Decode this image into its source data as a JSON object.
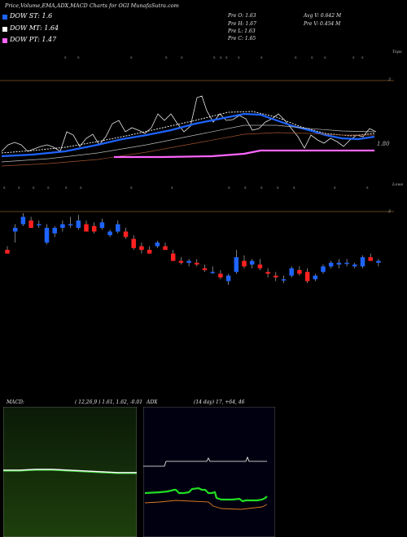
{
  "title": "Price,Volume,EMA,ADX,MACD Charts for OGI MunafaSutra.com",
  "legend": [
    {
      "label": "DOW ST: 1.6",
      "color": "#1e64ff"
    },
    {
      "label": "DOW MT: 1.64",
      "color": "#ffffff"
    },
    {
      "label": "DOW PT: 1.47",
      "color": "#ff66ff"
    }
  ],
  "stats": {
    "pre_o": "Pre  O: 1.63",
    "pre_h": "Pre  H: 1.67",
    "pre_l": "Pre  L: 1.63",
    "pre_c": "Pre  C: 1.65",
    "avg_v": "Avg V: 0.642  M",
    "pre_v": "Pre  V: 0.454  M"
  },
  "axis": {
    "tops_label": "Tops",
    "lows_label": "Lows",
    "upper_level": "2",
    "price_level": "1.80",
    "lower_level": "2"
  },
  "macd": {
    "label": "MACD:",
    "params": "( 12,26,9 ) 1.61,  1.62,  -0.01"
  },
  "adx": {
    "label": "ADX",
    "params": "(14  day) 17,  +64,  46"
  },
  "colors": {
    "up": "#1e64ff",
    "down": "#ff2020",
    "ema_short": "#1e64ff",
    "ema_mid": "#ffffff",
    "ema_long": "#ff66ff",
    "band": "#a0522d"
  },
  "chart_data": {
    "type": "candlestick",
    "candles": [
      {
        "o": 1.72,
        "h": 1.74,
        "l": 1.7,
        "c": 1.7
      },
      {
        "o": 1.82,
        "h": 1.86,
        "l": 1.76,
        "c": 1.84
      },
      {
        "o": 1.86,
        "h": 1.92,
        "l": 1.85,
        "c": 1.9
      },
      {
        "o": 1.88,
        "h": 1.9,
        "l": 1.84,
        "c": 1.84
      },
      {
        "o": 1.86,
        "h": 1.88,
        "l": 1.84,
        "c": 1.86
      },
      {
        "o": 1.76,
        "h": 1.86,
        "l": 1.75,
        "c": 1.84
      },
      {
        "o": 1.81,
        "h": 1.85,
        "l": 1.79,
        "c": 1.84
      },
      {
        "o": 1.84,
        "h": 1.88,
        "l": 1.82,
        "c": 1.86
      },
      {
        "o": 1.86,
        "h": 1.9,
        "l": 1.84,
        "c": 1.86
      },
      {
        "o": 1.84,
        "h": 1.91,
        "l": 1.83,
        "c": 1.88
      },
      {
        "o": 1.86,
        "h": 1.88,
        "l": 1.82,
        "c": 1.82
      },
      {
        "o": 1.85,
        "h": 1.87,
        "l": 1.81,
        "c": 1.82
      },
      {
        "o": 1.84,
        "h": 1.89,
        "l": 1.83,
        "c": 1.87
      },
      {
        "o": 1.8,
        "h": 1.83,
        "l": 1.79,
        "c": 1.82
      },
      {
        "o": 1.82,
        "h": 1.88,
        "l": 1.81,
        "c": 1.86
      },
      {
        "o": 1.82,
        "h": 1.84,
        "l": 1.78,
        "c": 1.79
      },
      {
        "o": 1.78,
        "h": 1.8,
        "l": 1.72,
        "c": 1.73
      },
      {
        "o": 1.74,
        "h": 1.76,
        "l": 1.7,
        "c": 1.72
      },
      {
        "o": 1.72,
        "h": 1.74,
        "l": 1.7,
        "c": 1.7
      },
      {
        "o": 1.74,
        "h": 1.77,
        "l": 1.73,
        "c": 1.76
      },
      {
        "o": 1.74,
        "h": 1.76,
        "l": 1.72,
        "c": 1.72
      },
      {
        "o": 1.7,
        "h": 1.72,
        "l": 1.66,
        "c": 1.66
      },
      {
        "o": 1.66,
        "h": 1.68,
        "l": 1.64,
        "c": 1.65
      },
      {
        "o": 1.65,
        "h": 1.67,
        "l": 1.63,
        "c": 1.66
      },
      {
        "o": 1.65,
        "h": 1.67,
        "l": 1.63,
        "c": 1.64
      },
      {
        "o": 1.62,
        "h": 1.64,
        "l": 1.6,
        "c": 1.61
      },
      {
        "o": 1.6,
        "h": 1.63,
        "l": 1.59,
        "c": 1.6
      },
      {
        "o": 1.59,
        "h": 1.61,
        "l": 1.56,
        "c": 1.57
      },
      {
        "o": 1.55,
        "h": 1.59,
        "l": 1.53,
        "c": 1.58
      },
      {
        "o": 1.6,
        "h": 1.72,
        "l": 1.59,
        "c": 1.68
      },
      {
        "o": 1.66,
        "h": 1.69,
        "l": 1.62,
        "c": 1.63
      },
      {
        "o": 1.64,
        "h": 1.67,
        "l": 1.62,
        "c": 1.66
      },
      {
        "o": 1.64,
        "h": 1.67,
        "l": 1.61,
        "c": 1.62
      },
      {
        "o": 1.6,
        "h": 1.62,
        "l": 1.57,
        "c": 1.59
      },
      {
        "o": 1.58,
        "h": 1.6,
        "l": 1.55,
        "c": 1.57
      },
      {
        "o": 1.56,
        "h": 1.58,
        "l": 1.54,
        "c": 1.56
      },
      {
        "o": 1.58,
        "h": 1.63,
        "l": 1.57,
        "c": 1.62
      },
      {
        "o": 1.61,
        "h": 1.63,
        "l": 1.58,
        "c": 1.59
      },
      {
        "o": 1.6,
        "h": 1.62,
        "l": 1.54,
        "c": 1.55
      },
      {
        "o": 1.56,
        "h": 1.59,
        "l": 1.55,
        "c": 1.58
      },
      {
        "o": 1.6,
        "h": 1.64,
        "l": 1.59,
        "c": 1.63
      },
      {
        "o": 1.63,
        "h": 1.66,
        "l": 1.62,
        "c": 1.65
      },
      {
        "o": 1.64,
        "h": 1.67,
        "l": 1.62,
        "c": 1.65
      },
      {
        "o": 1.65,
        "h": 1.67,
        "l": 1.63,
        "c": 1.65
      },
      {
        "o": 1.63,
        "h": 1.65,
        "l": 1.62,
        "c": 1.64
      },
      {
        "o": 1.63,
        "h": 1.69,
        "l": 1.62,
        "c": 1.68
      },
      {
        "o": 1.68,
        "h": 1.7,
        "l": 1.66,
        "c": 1.66
      },
      {
        "o": 1.65,
        "h": 1.67,
        "l": 1.63,
        "c": 1.66
      }
    ]
  }
}
